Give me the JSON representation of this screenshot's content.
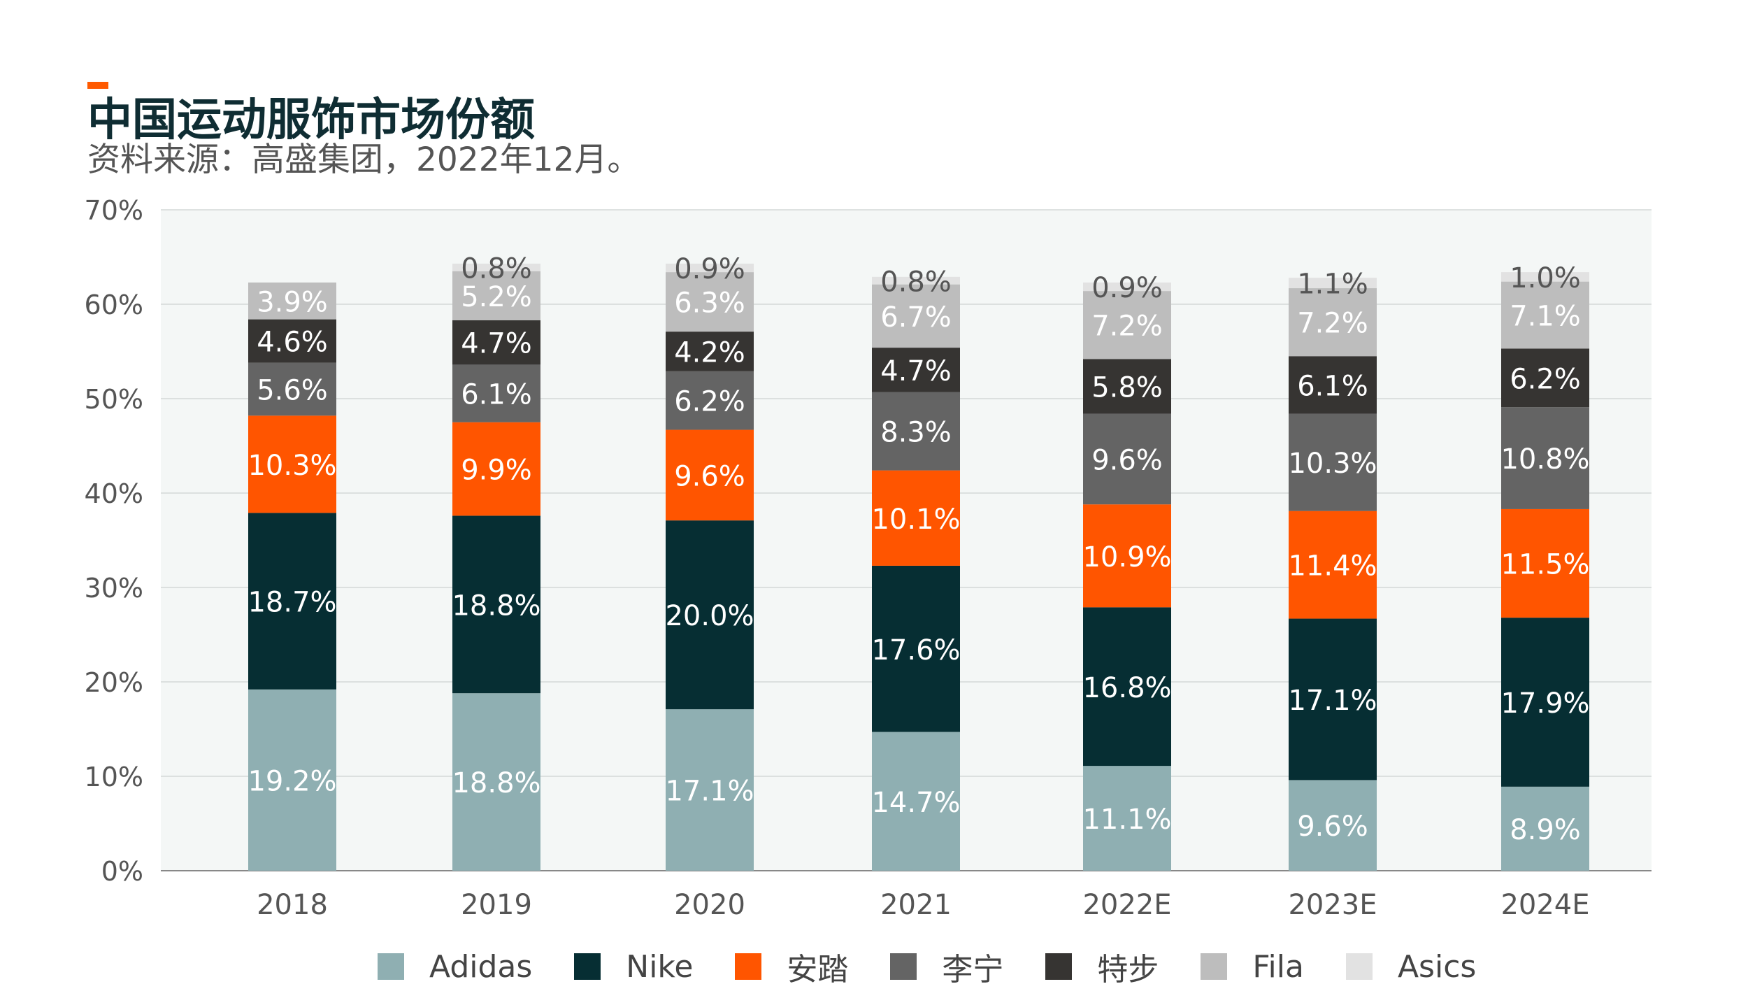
{
  "title": "中国运动服饰市场份额",
  "subtitle": "资料来源：高盛集团，2022年12月。",
  "chart_data": {
    "type": "bar",
    "stacked": true,
    "categories": [
      "2018",
      "2019",
      "2020",
      "2021",
      "2022E",
      "2023E",
      "2024E"
    ],
    "ylim": [
      0,
      70
    ],
    "yticks": [
      "0%",
      "10%",
      "20%",
      "30%",
      "40%",
      "50%",
      "60%",
      "70%"
    ],
    "grid": true,
    "legend_position": "bottom",
    "series": [
      {
        "name": "Adidas",
        "color": "#8FAFB2",
        "labelColor": "#ffffff",
        "values": [
          19.2,
          18.8,
          17.1,
          14.7,
          11.1,
          9.6,
          8.9
        ],
        "labels": [
          "19.2%",
          "18.8%",
          "17.1%",
          "14.7%",
          "11.1%",
          "9.6%",
          "8.9%"
        ]
      },
      {
        "name": "Nike",
        "color": "#062E33",
        "labelColor": "#ffffff",
        "values": [
          18.7,
          18.8,
          20.0,
          17.6,
          16.8,
          17.1,
          17.9
        ],
        "labels": [
          "18.7%",
          "18.8%",
          "20.0%",
          "17.6%",
          "16.8%",
          "17.1%",
          "17.9%"
        ]
      },
      {
        "name": "安踏",
        "color": "#FF5500",
        "labelColor": "#ffffff",
        "values": [
          10.3,
          9.9,
          9.6,
          10.1,
          10.9,
          11.4,
          11.5
        ],
        "labels": [
          "10.3%",
          "9.9%",
          "9.6%",
          "10.1%",
          "10.9%",
          "11.4%",
          "11.5%"
        ]
      },
      {
        "name": "李宁",
        "color": "#646464",
        "labelColor": "#ffffff",
        "values": [
          5.6,
          6.1,
          6.2,
          8.3,
          9.6,
          10.3,
          10.8
        ],
        "labels": [
          "5.6%",
          "6.1%",
          "6.2%",
          "8.3%",
          "9.6%",
          "10.3%",
          "10.8%"
        ]
      },
      {
        "name": "特步",
        "color": "#363432",
        "labelColor": "#ffffff",
        "values": [
          4.6,
          4.7,
          4.2,
          4.7,
          5.8,
          6.1,
          6.2
        ],
        "labels": [
          "4.6%",
          "4.7%",
          "4.2%",
          "4.7%",
          "5.8%",
          "6.1%",
          "6.2%"
        ]
      },
      {
        "name": "Fila",
        "color": "#BDBDBD",
        "labelColor": "#ffffff",
        "values": [
          3.9,
          5.2,
          6.3,
          6.7,
          7.2,
          7.2,
          7.1
        ],
        "labels": [
          "3.9%",
          "5.2%",
          "6.3%",
          "6.7%",
          "7.2%",
          "7.2%",
          "7.1%"
        ]
      },
      {
        "name": "Asics",
        "color": "#E2E2E2",
        "labelColor": "#555555",
        "values": [
          0,
          0.8,
          0.9,
          0.8,
          0.9,
          1.1,
          1.0
        ],
        "labels": [
          "",
          "0.8%",
          "0.9%",
          "0.8%",
          "0.9%",
          "1.1%",
          "1.0%"
        ]
      }
    ]
  }
}
